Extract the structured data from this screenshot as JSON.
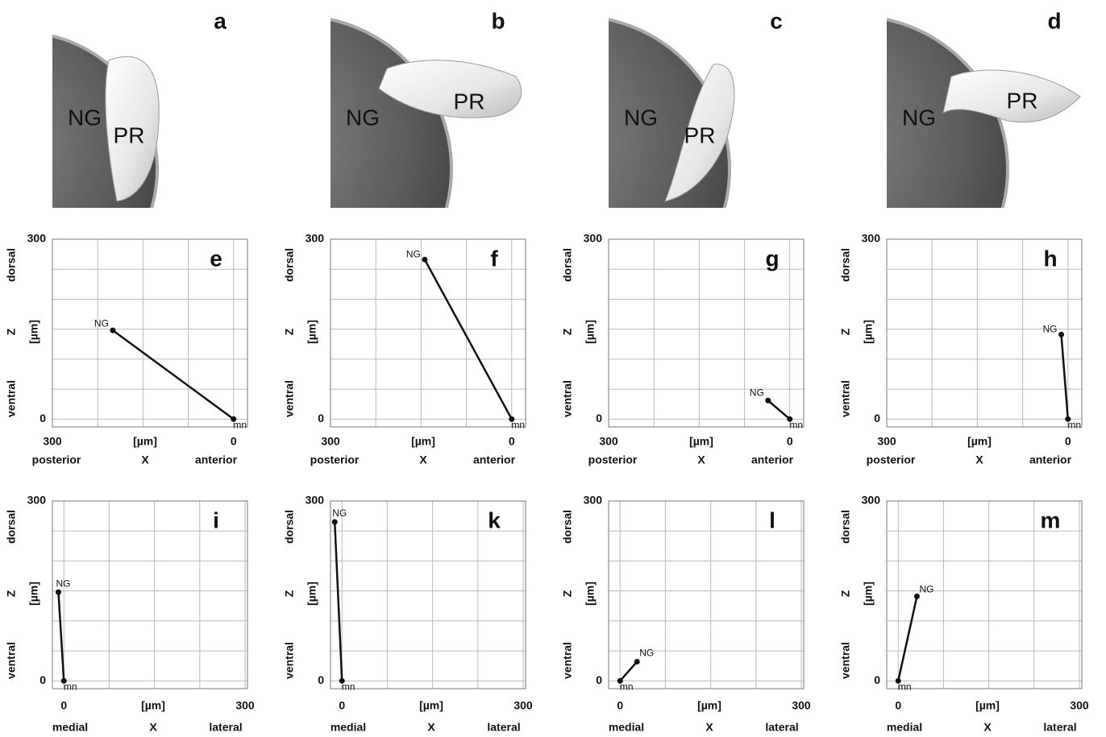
{
  "panels": [
    {
      "letter": "a",
      "labels": [
        "NG",
        "PR"
      ]
    },
    {
      "letter": "b",
      "labels": [
        "NG",
        "PR"
      ]
    },
    {
      "letter": "c",
      "labels": [
        "NG",
        "PR"
      ]
    },
    {
      "letter": "d",
      "labels": [
        "NG",
        "PR"
      ]
    }
  ],
  "chart_data": [
    {
      "type": "line",
      "title": "e",
      "x": [
        200,
        0
      ],
      "values": [
        148,
        0
      ],
      "point_labels": [
        "NG",
        "mn"
      ],
      "color": "#111",
      "xlim": [
        300,
        -23
      ],
      "ylim": [
        -13,
        300
      ],
      "xticks": [
        300,
        0
      ],
      "yticks": [
        0,
        300
      ],
      "xgrid": [
        300,
        225,
        150,
        75,
        0
      ],
      "ygrid": [
        0,
        50,
        100,
        150,
        200,
        250,
        300
      ],
      "y_labels": [
        "dorsal",
        "Z",
        "ventral"
      ],
      "y_unit": "[µm]",
      "x_unit": "[µm]",
      "x_labels": [
        "posterior",
        "X",
        "anterior"
      ]
    },
    {
      "type": "line",
      "title": "f",
      "x": [
        144,
        0
      ],
      "values": [
        266,
        0
      ],
      "point_labels": [
        "NG",
        "mn"
      ],
      "color": "#111",
      "xlim": [
        300,
        -23
      ],
      "ylim": [
        -13,
        300
      ],
      "xticks": [
        300,
        0
      ],
      "yticks": [
        0,
        300
      ],
      "xgrid": [
        300,
        225,
        150,
        75,
        0
      ],
      "ygrid": [
        0,
        50,
        100,
        150,
        200,
        250,
        300
      ],
      "y_labels": [
        "dorsal",
        "Z",
        "ventral"
      ],
      "y_unit": "[µm]",
      "x_unit": "[µm]",
      "x_labels": [
        "posterior",
        "X",
        "anterior"
      ]
    },
    {
      "type": "line",
      "title": "g",
      "x": [
        36,
        0
      ],
      "values": [
        31,
        0
      ],
      "point_labels": [
        "NG",
        "mn"
      ],
      "color": "#111",
      "xlim": [
        300,
        -23
      ],
      "ylim": [
        -13,
        300
      ],
      "xticks": [
        300,
        0
      ],
      "yticks": [
        0,
        300
      ],
      "xgrid": [
        300,
        225,
        150,
        75,
        0
      ],
      "ygrid": [
        0,
        50,
        100,
        150,
        200,
        250,
        300
      ],
      "y_labels": [
        "dorsal",
        "Z",
        "ventral"
      ],
      "y_unit": "[µm]",
      "x_unit": "[µm]",
      "x_labels": [
        "posterior",
        "X",
        "anterior"
      ]
    },
    {
      "type": "line",
      "title": "h",
      "x": [
        11,
        0
      ],
      "values": [
        141,
        0
      ],
      "point_labels": [
        "NG",
        "mn"
      ],
      "color": "#111",
      "xlim": [
        300,
        -23
      ],
      "ylim": [
        -13,
        300
      ],
      "xticks": [
        300,
        0
      ],
      "yticks": [
        0,
        300
      ],
      "xgrid": [
        300,
        225,
        150,
        75,
        0
      ],
      "ygrid": [
        0,
        50,
        100,
        150,
        200,
        250,
        300
      ],
      "y_labels": [
        "dorsal",
        "Z",
        "ventral"
      ],
      "y_unit": "[µm]",
      "x_unit": "[µm]",
      "x_labels": [
        "posterior",
        "X",
        "anterior"
      ]
    },
    {
      "type": "line",
      "title": "i",
      "x": [
        -9,
        0
      ],
      "values": [
        148,
        0
      ],
      "point_labels": [
        "NG",
        "mn"
      ],
      "color": "#111",
      "xlim": [
        -19,
        304
      ],
      "ylim": [
        -13,
        300
      ],
      "xticks": [
        0,
        300
      ],
      "yticks": [
        0,
        300
      ],
      "xgrid": [
        0,
        75,
        150,
        225,
        300
      ],
      "ygrid": [
        0,
        50,
        100,
        150,
        200,
        250,
        300
      ],
      "y_labels": [
        "dorsal",
        "Z",
        "ventral"
      ],
      "y_unit": "[µm]",
      "x_unit": "[µm]",
      "x_labels": [
        "medial",
        "X",
        "lateral"
      ]
    },
    {
      "type": "line",
      "title": "k",
      "x": [
        -12,
        0
      ],
      "values": [
        265,
        0
      ],
      "point_labels": [
        "NG",
        "mn"
      ],
      "color": "#111",
      "xlim": [
        -19,
        304
      ],
      "ylim": [
        -13,
        300
      ],
      "xticks": [
        0,
        300
      ],
      "yticks": [
        0,
        300
      ],
      "xgrid": [
        0,
        75,
        150,
        225,
        300
      ],
      "ygrid": [
        0,
        50,
        100,
        150,
        200,
        250,
        300
      ],
      "y_labels": [
        "dorsal",
        "Z",
        "ventral"
      ],
      "y_unit": "[µm]",
      "x_unit": "[µm]",
      "x_labels": [
        "medial",
        "X",
        "lateral"
      ]
    },
    {
      "type": "line",
      "title": "l",
      "x": [
        28,
        0
      ],
      "values": [
        32,
        0
      ],
      "point_labels": [
        "NG",
        "mn"
      ],
      "color": "#111",
      "xlim": [
        -19,
        304
      ],
      "ylim": [
        -13,
        300
      ],
      "xticks": [
        0,
        300
      ],
      "yticks": [
        0,
        300
      ],
      "xgrid": [
        0,
        75,
        150,
        225,
        300
      ],
      "ygrid": [
        0,
        50,
        100,
        150,
        200,
        250,
        300
      ],
      "y_labels": [
        "dorsal",
        "Z",
        "ventral"
      ],
      "y_unit": "[µm]",
      "x_unit": "[µm]",
      "x_labels": [
        "medial",
        "X",
        "lateral"
      ]
    },
    {
      "type": "line",
      "title": "m",
      "x": [
        31,
        0
      ],
      "values": [
        141,
        0
      ],
      "point_labels": [
        "NG",
        "mn"
      ],
      "color": "#111",
      "xlim": [
        -19,
        304
      ],
      "ylim": [
        -13,
        300
      ],
      "xticks": [
        0,
        300
      ],
      "yticks": [
        0,
        300
      ],
      "xgrid": [
        0,
        75,
        150,
        225,
        300
      ],
      "ygrid": [
        0,
        50,
        100,
        150,
        200,
        250,
        300
      ],
      "y_labels": [
        "dorsal",
        "Z",
        "ventral"
      ],
      "y_unit": "[µm]",
      "x_unit": "[µm]",
      "x_labels": [
        "medial",
        "X",
        "lateral"
      ]
    }
  ]
}
